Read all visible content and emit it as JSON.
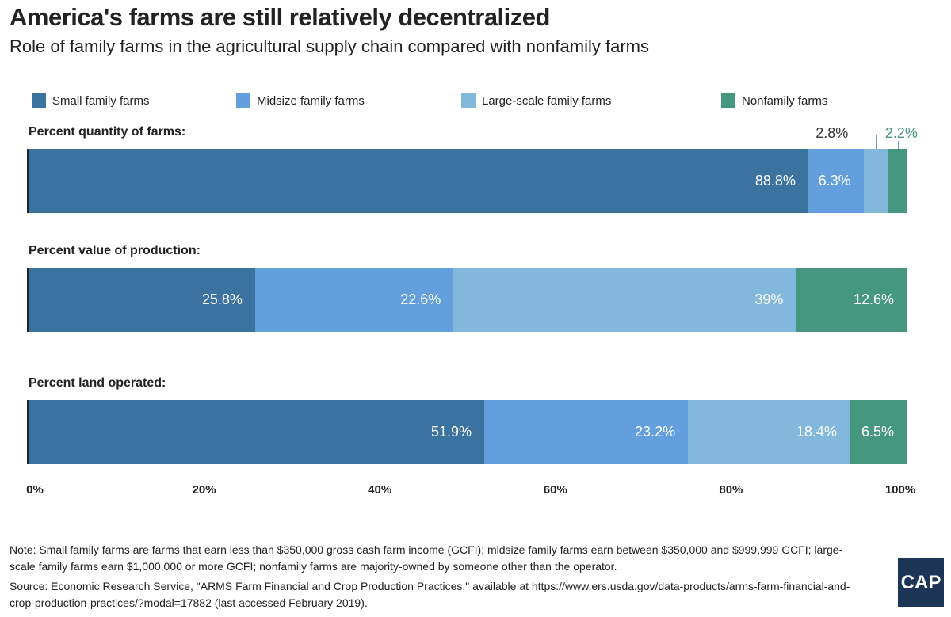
{
  "chart_data": {
    "type": "bar",
    "orientation": "horizontal",
    "stacked": true,
    "title": "America's farms are still relatively decentralized",
    "subtitle": "Role of family farms in the agricultural supply chain compared with nonfamily farms",
    "legend": [
      "Small family farms",
      "Midsize family farms",
      "Large-scale family farms",
      "Nonfamily farms"
    ],
    "colors": [
      "#3b72a0",
      "#629fdc",
      "#82b8dc",
      "#45977f"
    ],
    "categories": [
      "Percent quantity of farms:",
      "Percent value of production:",
      "Percent land operated:"
    ],
    "series": [
      {
        "name": "Small family farms",
        "values": [
          88.8,
          25.8,
          51.9
        ],
        "labels": [
          "88.8%",
          "25.8%",
          "51.9%"
        ]
      },
      {
        "name": "Midsize family farms",
        "values": [
          6.3,
          22.6,
          23.2
        ],
        "labels": [
          "6.3%",
          "22.6%",
          "23.2%"
        ]
      },
      {
        "name": "Large-scale family farms",
        "values": [
          2.8,
          39,
          18.4
        ],
        "labels": [
          "2.8%",
          "39%",
          "18.4%"
        ]
      },
      {
        "name": "Nonfamily farms",
        "values": [
          2.2,
          12.6,
          6.5
        ],
        "labels": [
          "2.2%",
          "12.6%",
          "6.5%"
        ]
      }
    ],
    "xlim": [
      0,
      100
    ],
    "xticks": [
      "0%",
      "20%",
      "40%",
      "60%",
      "80%",
      "100%"
    ]
  },
  "note": "Note: Small family farms are farms that earn less than $350,000 gross cash farm income (GCFI); midsize family farms earn between $350,000 and $999,999 GCFI; large-scale family farms earn $1,000,000 or more GCFI; nonfamily farms are majority-owned by someone other than the operator.",
  "source": "Source: Economic Research Service, \"ARMS Farm Financial and Crop Production Practices,\" available at https://www.ers.usda.gov/data-products/arms-farm-financial-and-crop-production-practices/?modal=17882 (last accessed February 2019).",
  "logo": "CAP"
}
